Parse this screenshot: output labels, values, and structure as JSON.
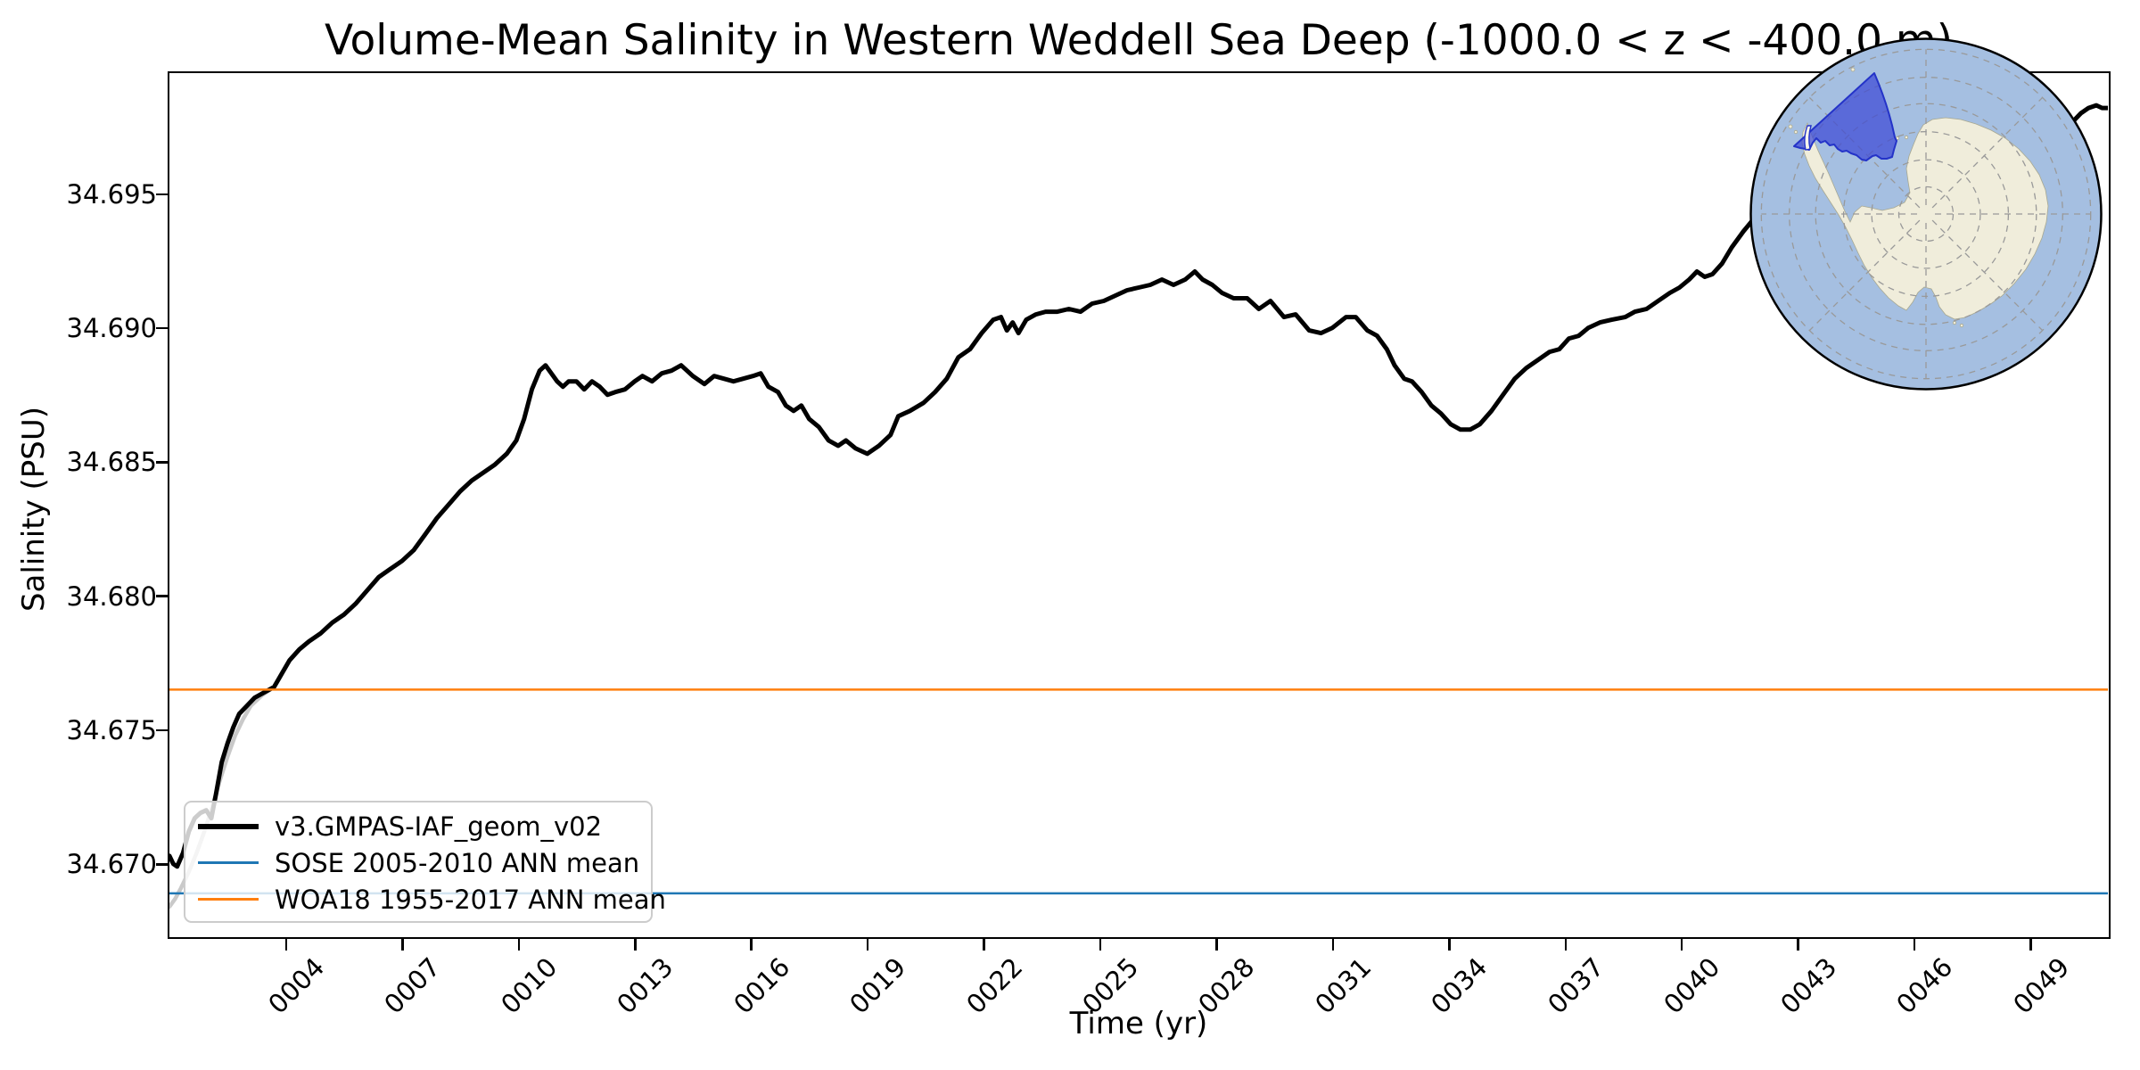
{
  "title": "Volume-Mean Salinity in Western Weddell Sea Deep (-1000.0 < z < -400.0 m)",
  "axes": {
    "xlabel": "Time (yr)",
    "ylabel": "Salinity (PSU)",
    "x_tick_labels": [
      "0004",
      "0007",
      "0010",
      "0013",
      "0016",
      "0019",
      "0022",
      "0025",
      "0028",
      "0031",
      "0034",
      "0037",
      "0040",
      "0043",
      "0046",
      "0049"
    ],
    "x_tick_years": [
      4,
      7,
      10,
      13,
      16,
      19,
      22,
      25,
      28,
      31,
      34,
      37,
      40,
      43,
      46,
      49
    ],
    "y_tick_labels": [
      "34.670",
      "34.675",
      "34.680",
      "34.685",
      "34.690",
      "34.695"
    ],
    "y_tick_values": [
      34.67,
      34.675,
      34.68,
      34.685,
      34.69,
      34.695
    ]
  },
  "chart_data": {
    "type": "line",
    "title": "Volume-Mean Salinity in Western Weddell Sea Deep (-1000.0 < z < -400.0 m)",
    "xlabel": "Time (yr)",
    "ylabel": "Salinity (PSU)",
    "xlim": [
      1,
      51
    ],
    "ylim": [
      34.6673,
      34.6995
    ],
    "grid": false,
    "legend_position": "lower left",
    "series": [
      {
        "name": "v3.GMPAS-IAF_geom_v02 monthly",
        "kind": "line",
        "color": "#c9c9c9",
        "line_width": 4.5,
        "in_legend": false,
        "points": [
          [
            1.0,
            34.6684
          ],
          [
            1.15,
            34.6687
          ],
          [
            1.3,
            34.6691
          ],
          [
            1.5,
            34.6697
          ],
          [
            1.7,
            34.6704
          ],
          [
            1.9,
            34.6712
          ],
          [
            2.1,
            34.6721
          ],
          [
            2.3,
            34.6731
          ],
          [
            2.5,
            34.674
          ],
          [
            2.7,
            34.6748
          ],
          [
            2.9,
            34.6754
          ],
          [
            3.1,
            34.6759
          ],
          [
            3.4,
            34.6763
          ],
          [
            3.7,
            34.6766
          ]
        ]
      },
      {
        "name": "v3.GMPAS-IAF_geom_v02",
        "kind": "line",
        "color": "#000000",
        "line_width": 5,
        "in_legend": true,
        "points": [
          [
            1.0,
            34.6703
          ],
          [
            1.1,
            34.67
          ],
          [
            1.2,
            34.6699
          ],
          [
            1.35,
            34.6704
          ],
          [
            1.5,
            34.6712
          ],
          [
            1.65,
            34.6717
          ],
          [
            1.8,
            34.6719
          ],
          [
            1.95,
            34.672
          ],
          [
            2.08,
            34.6717
          ],
          [
            2.2,
            34.6726
          ],
          [
            2.35,
            34.6738
          ],
          [
            2.5,
            34.6745
          ],
          [
            2.65,
            34.6751
          ],
          [
            2.8,
            34.6756
          ],
          [
            3.0,
            34.6759
          ],
          [
            3.2,
            34.6762
          ],
          [
            3.45,
            34.6764
          ],
          [
            3.7,
            34.6766
          ],
          [
            3.9,
            34.6771
          ],
          [
            4.1,
            34.6776
          ],
          [
            4.35,
            34.678
          ],
          [
            4.6,
            34.6783
          ],
          [
            4.9,
            34.6786
          ],
          [
            5.2,
            34.679
          ],
          [
            5.5,
            34.6793
          ],
          [
            5.8,
            34.6797
          ],
          [
            6.1,
            34.6802
          ],
          [
            6.4,
            34.6807
          ],
          [
            6.7,
            34.681
          ],
          [
            7.0,
            34.6813
          ],
          [
            7.3,
            34.6817
          ],
          [
            7.6,
            34.6823
          ],
          [
            7.9,
            34.6829
          ],
          [
            8.2,
            34.6834
          ],
          [
            8.5,
            34.6839
          ],
          [
            8.8,
            34.6843
          ],
          [
            9.1,
            34.6846
          ],
          [
            9.4,
            34.6849
          ],
          [
            9.7,
            34.6853
          ],
          [
            9.95,
            34.6858
          ],
          [
            10.15,
            34.6866
          ],
          [
            10.35,
            34.6877
          ],
          [
            10.55,
            34.6884
          ],
          [
            10.7,
            34.6886
          ],
          [
            10.85,
            34.6883
          ],
          [
            11.0,
            34.688
          ],
          [
            11.15,
            34.6878
          ],
          [
            11.3,
            34.688
          ],
          [
            11.5,
            34.688
          ],
          [
            11.7,
            34.6877
          ],
          [
            11.9,
            34.688
          ],
          [
            12.1,
            34.6878
          ],
          [
            12.3,
            34.6875
          ],
          [
            12.5,
            34.6876
          ],
          [
            12.75,
            34.6877
          ],
          [
            13.0,
            34.688
          ],
          [
            13.2,
            34.6882
          ],
          [
            13.45,
            34.688
          ],
          [
            13.7,
            34.6883
          ],
          [
            13.95,
            34.6884
          ],
          [
            14.2,
            34.6886
          ],
          [
            14.5,
            34.6882
          ],
          [
            14.8,
            34.6879
          ],
          [
            15.05,
            34.6882
          ],
          [
            15.3,
            34.6881
          ],
          [
            15.55,
            34.688
          ],
          [
            15.8,
            34.6881
          ],
          [
            16.05,
            34.6882
          ],
          [
            16.25,
            34.6883
          ],
          [
            16.45,
            34.6878
          ],
          [
            16.7,
            34.6876
          ],
          [
            16.9,
            34.6871
          ],
          [
            17.1,
            34.6869
          ],
          [
            17.3,
            34.6871
          ],
          [
            17.5,
            34.6866
          ],
          [
            17.75,
            34.6863
          ],
          [
            18.0,
            34.6858
          ],
          [
            18.25,
            34.6856
          ],
          [
            18.45,
            34.6858
          ],
          [
            18.7,
            34.6855
          ],
          [
            19.0,
            34.6853
          ],
          [
            19.3,
            34.6856
          ],
          [
            19.6,
            34.686
          ],
          [
            19.8,
            34.6867
          ],
          [
            20.1,
            34.6869
          ],
          [
            20.45,
            34.6872
          ],
          [
            20.75,
            34.6876
          ],
          [
            21.05,
            34.6881
          ],
          [
            21.35,
            34.6889
          ],
          [
            21.65,
            34.6892
          ],
          [
            21.95,
            34.6898
          ],
          [
            22.25,
            34.6903
          ],
          [
            22.45,
            34.6904
          ],
          [
            22.6,
            34.6899
          ],
          [
            22.75,
            34.6902
          ],
          [
            22.9,
            34.6898
          ],
          [
            23.1,
            34.6903
          ],
          [
            23.35,
            34.6905
          ],
          [
            23.6,
            34.6906
          ],
          [
            23.9,
            34.6906
          ],
          [
            24.2,
            34.6907
          ],
          [
            24.5,
            34.6906
          ],
          [
            24.8,
            34.6909
          ],
          [
            25.1,
            34.691
          ],
          [
            25.4,
            34.6912
          ],
          [
            25.7,
            34.6914
          ],
          [
            26.0,
            34.6915
          ],
          [
            26.3,
            34.6916
          ],
          [
            26.6,
            34.6918
          ],
          [
            26.9,
            34.6916
          ],
          [
            27.2,
            34.6918
          ],
          [
            27.45,
            34.6921
          ],
          [
            27.65,
            34.6918
          ],
          [
            27.9,
            34.6916
          ],
          [
            28.15,
            34.6913
          ],
          [
            28.45,
            34.6911
          ],
          [
            28.8,
            34.6911
          ],
          [
            29.1,
            34.6907
          ],
          [
            29.4,
            34.691
          ],
          [
            29.75,
            34.6904
          ],
          [
            30.05,
            34.6905
          ],
          [
            30.4,
            34.6899
          ],
          [
            30.7,
            34.6898
          ],
          [
            31.0,
            34.69
          ],
          [
            31.35,
            34.6904
          ],
          [
            31.6,
            34.6904
          ],
          [
            31.9,
            34.6899
          ],
          [
            32.15,
            34.6897
          ],
          [
            32.4,
            34.6892
          ],
          [
            32.6,
            34.6886
          ],
          [
            32.85,
            34.6881
          ],
          [
            33.05,
            34.688
          ],
          [
            33.3,
            34.6876
          ],
          [
            33.55,
            34.6871
          ],
          [
            33.8,
            34.6868
          ],
          [
            34.05,
            34.6864
          ],
          [
            34.3,
            34.6862
          ],
          [
            34.55,
            34.6862
          ],
          [
            34.8,
            34.6864
          ],
          [
            35.1,
            34.6869
          ],
          [
            35.4,
            34.6875
          ],
          [
            35.7,
            34.6881
          ],
          [
            36.0,
            34.6885
          ],
          [
            36.3,
            34.6888
          ],
          [
            36.6,
            34.6891
          ],
          [
            36.85,
            34.6892
          ],
          [
            37.1,
            34.6896
          ],
          [
            37.35,
            34.6897
          ],
          [
            37.6,
            34.69
          ],
          [
            37.9,
            34.6902
          ],
          [
            38.2,
            34.6903
          ],
          [
            38.55,
            34.6904
          ],
          [
            38.8,
            34.6906
          ],
          [
            39.1,
            34.6907
          ],
          [
            39.4,
            34.691
          ],
          [
            39.7,
            34.6913
          ],
          [
            39.95,
            34.6915
          ],
          [
            40.2,
            34.6918
          ],
          [
            40.4,
            34.6921
          ],
          [
            40.6,
            34.6919
          ],
          [
            40.8,
            34.692
          ],
          [
            41.05,
            34.6924
          ],
          [
            41.3,
            34.693
          ],
          [
            41.6,
            34.6936
          ],
          [
            42.0,
            34.6943
          ],
          [
            42.5,
            34.695
          ],
          [
            43.0,
            34.6956
          ],
          [
            43.5,
            34.6961
          ],
          [
            44.0,
            34.6965
          ],
          [
            44.5,
            34.6968
          ],
          [
            45.0,
            34.697
          ],
          [
            45.5,
            34.6971
          ],
          [
            46.0,
            34.6973
          ],
          [
            46.5,
            34.6974
          ],
          [
            47.0,
            34.6975
          ],
          [
            47.5,
            34.6976
          ],
          [
            48.0,
            34.6977
          ],
          [
            48.5,
            34.6978
          ],
          [
            49.0,
            34.6979
          ],
          [
            49.4,
            34.698
          ],
          [
            49.7,
            34.6981
          ],
          [
            49.9,
            34.6979
          ],
          [
            50.1,
            34.6977
          ],
          [
            50.3,
            34.698
          ],
          [
            50.5,
            34.6982
          ],
          [
            50.7,
            34.6983
          ],
          [
            50.85,
            34.6982
          ],
          [
            51.0,
            34.6982
          ]
        ]
      },
      {
        "name": "SOSE 2005-2010 ANN mean",
        "kind": "hline",
        "color": "#1f77b4",
        "line_width": 2.5,
        "in_legend": true,
        "value": 34.6689
      },
      {
        "name": "WOA18 1955-2017 ANN mean",
        "kind": "hline",
        "color": "#ff7f0e",
        "line_width": 2.5,
        "in_legend": true,
        "value": 34.6765
      }
    ],
    "legend_entries": [
      {
        "label": "v3.GMPAS-IAF_geom_v02",
        "color": "#000000",
        "sample_height": 6
      },
      {
        "label": "SOSE 2005-2010 ANN mean",
        "color": "#1f77b4",
        "sample_height": 3
      },
      {
        "label": "WOA18 1955-2017 ANN mean",
        "color": "#ff7f0e",
        "sample_height": 3
      }
    ]
  },
  "inset_map": {
    "description": "South polar stereographic locator map with highlighted Western Weddell Sea region",
    "ocean_color": "#a5bfe1",
    "land_color": "#f0eddb",
    "region_fill": "#3d49d6",
    "region_fill_opacity": 0.72,
    "region_edge": "#2433c8",
    "graticule_color": "#999999",
    "border_color": "#000000"
  }
}
